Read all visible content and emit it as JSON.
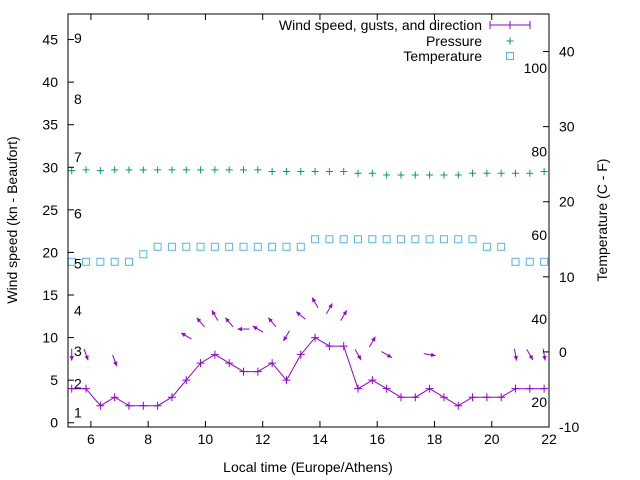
{
  "chart_data": {
    "type": "line",
    "xlabel": "Local time (Europe/Athens)",
    "ylabel_left": "Wind speed (kn - Beaufort)",
    "ylabel_right": "Temperature (C - F)",
    "xlim": [
      5.2,
      22
    ],
    "ylim_left": [
      -0.5,
      48
    ],
    "ylim_right": [
      -10,
      45
    ],
    "x_ticks": [
      6,
      8,
      10,
      12,
      14,
      16,
      18,
      20,
      22
    ],
    "y_ticks_left": [
      0,
      5,
      10,
      15,
      20,
      25,
      30,
      35,
      40,
      45
    ],
    "y_ticks_right": [
      -10,
      0,
      10,
      20,
      30,
      40
    ],
    "beaufort_labels": [
      {
        "label": "1",
        "kn": 1.2
      },
      {
        "label": "2",
        "kn": 4.6
      },
      {
        "label": "3",
        "kn": 8.4
      },
      {
        "label": "4",
        "kn": 13.2
      },
      {
        "label": "5",
        "kn": 18.7
      },
      {
        "label": "6",
        "kn": 24.6
      },
      {
        "label": "7",
        "kn": 31.2
      },
      {
        "label": "8",
        "kn": 38.0
      },
      {
        "label": "9",
        "kn": 45.2
      }
    ],
    "fahrenheit_labels": [
      {
        "label": "20",
        "c": -6.7
      },
      {
        "label": "40",
        "c": 4.4
      },
      {
        "label": "60",
        "c": 15.6
      },
      {
        "label": "80",
        "c": 26.7
      },
      {
        "label": "100",
        "c": 37.8
      }
    ],
    "legend": [
      {
        "label": "Wind speed, gusts, and direction",
        "color": "#9400d3"
      },
      {
        "label": "Pressure",
        "color": "#009e73"
      },
      {
        "label": "Temperature",
        "color": "#56b4e9"
      }
    ],
    "legend_position": "top-right",
    "series": [
      {
        "name": "Wind speed, gusts, and direction",
        "color": "#9400d3",
        "x": [
          5.33,
          5.83,
          6.33,
          6.83,
          7.33,
          7.83,
          8.33,
          8.83,
          9.33,
          9.83,
          10.33,
          10.83,
          11.33,
          11.83,
          12.33,
          12.83,
          13.33,
          13.83,
          14.33,
          14.83,
          15.33,
          15.83,
          16.33,
          16.83,
          17.33,
          17.83,
          18.33,
          18.83,
          19.33,
          19.83,
          20.33,
          20.83,
          21.33,
          21.83
        ],
        "values": [
          4,
          4,
          2,
          3,
          2,
          2,
          2,
          3,
          5,
          7,
          8,
          7,
          6,
          6,
          7,
          5,
          8,
          10,
          9,
          9,
          4,
          5,
          4,
          3,
          3,
          4,
          3,
          2,
          3,
          3,
          3,
          4,
          4,
          4
        ]
      },
      {
        "name": "Pressure",
        "color": "#009e73",
        "x": [
          5.33,
          5.83,
          6.33,
          6.83,
          7.33,
          7.83,
          8.33,
          8.83,
          9.33,
          9.83,
          10.33,
          10.83,
          11.33,
          11.83,
          12.33,
          12.83,
          13.33,
          13.83,
          14.33,
          14.83,
          15.33,
          15.83,
          16.33,
          16.83,
          17.33,
          17.83,
          18.33,
          18.83,
          19.33,
          19.83,
          20.33,
          20.83,
          21.33,
          21.83
        ],
        "values": [
          29.6,
          29.7,
          29.6,
          29.7,
          29.7,
          29.7,
          29.7,
          29.7,
          29.7,
          29.7,
          29.7,
          29.7,
          29.7,
          29.7,
          29.5,
          29.5,
          29.5,
          29.5,
          29.5,
          29.5,
          29.3,
          29.3,
          29.1,
          29.1,
          29.1,
          29.1,
          29.1,
          29.1,
          29.3,
          29.3,
          29.3,
          29.3,
          29.3,
          29.5
        ]
      },
      {
        "name": "Temperature",
        "color": "#56b4e9",
        "x": [
          5.33,
          5.83,
          6.33,
          6.83,
          7.33,
          7.83,
          8.33,
          8.83,
          9.33,
          9.83,
          10.33,
          10.83,
          11.33,
          11.83,
          12.33,
          12.83,
          13.33,
          13.83,
          14.33,
          14.83,
          15.33,
          15.83,
          16.33,
          16.83,
          17.33,
          17.83,
          18.33,
          18.83,
          19.33,
          19.83,
          20.33,
          20.83,
          21.33,
          21.83
        ],
        "values": [
          12,
          12,
          12,
          12,
          12,
          13,
          14,
          14,
          14,
          14,
          14,
          14,
          14,
          14,
          14,
          14,
          14,
          15,
          15,
          15,
          15,
          15,
          15,
          15,
          15,
          15,
          15,
          15,
          15,
          14,
          14,
          12,
          12,
          12
        ]
      }
    ],
    "wind_direction_arrows": [
      {
        "x": 5.33,
        "kn": 8.0,
        "dir_deg": 0
      },
      {
        "x": 5.83,
        "kn": 8.0,
        "dir_deg": 20
      },
      {
        "x": 6.83,
        "kn": 7.3,
        "dir_deg": 20
      },
      {
        "x": 9.33,
        "kn": 10.2,
        "dir_deg": 240
      },
      {
        "x": 9.83,
        "kn": 11.8,
        "dir_deg": 220
      },
      {
        "x": 10.33,
        "kn": 12.6,
        "dir_deg": 210
      },
      {
        "x": 10.83,
        "kn": 11.8,
        "dir_deg": 220
      },
      {
        "x": 11.33,
        "kn": 11.0,
        "dir_deg": 270
      },
      {
        "x": 11.83,
        "kn": 11.0,
        "dir_deg": 240
      },
      {
        "x": 12.33,
        "kn": 11.8,
        "dir_deg": 220
      },
      {
        "x": 12.83,
        "kn": 10.2,
        "dir_deg": 330
      },
      {
        "x": 13.33,
        "kn": 12.6,
        "dir_deg": 230
      },
      {
        "x": 13.83,
        "kn": 14.1,
        "dir_deg": 210
      },
      {
        "x": 14.33,
        "kn": 13.4,
        "dir_deg": 150
      },
      {
        "x": 14.83,
        "kn": 12.6,
        "dir_deg": 150
      },
      {
        "x": 15.33,
        "kn": 8.0,
        "dir_deg": 30
      },
      {
        "x": 15.83,
        "kn": 9.5,
        "dir_deg": 150
      },
      {
        "x": 16.33,
        "kn": 8.0,
        "dir_deg": 60
      },
      {
        "x": 17.83,
        "kn": 8.0,
        "dir_deg": 80
      },
      {
        "x": 20.83,
        "kn": 8.0,
        "dir_deg": 10
      },
      {
        "x": 21.33,
        "kn": 8.0,
        "dir_deg": 30
      },
      {
        "x": 21.83,
        "kn": 8.0,
        "dir_deg": 10
      }
    ]
  }
}
